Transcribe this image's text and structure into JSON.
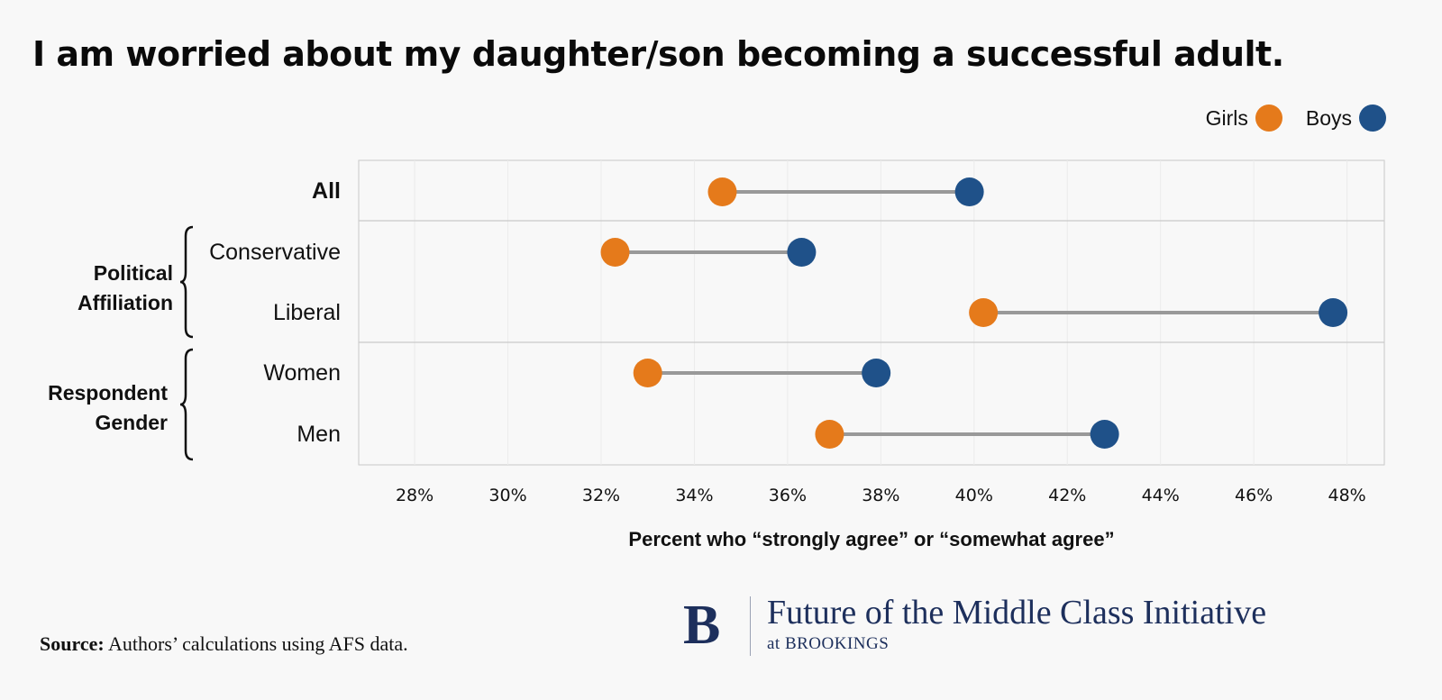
{
  "title": "I am worried about my daughter/son becoming a successful adult.",
  "legend": {
    "girls": "Girls",
    "boys": "Boys"
  },
  "colors": {
    "girls": "#e57a1b",
    "boys": "#1f5189",
    "connector": "#999999"
  },
  "row_labels": {
    "all": "All",
    "conservative": "Conservative",
    "liberal": "Liberal",
    "women": "Women",
    "men": "Men"
  },
  "group_labels": {
    "political_line1": "Political",
    "political_line2": "Affiliation",
    "gender_line1": "Respondent",
    "gender_line2": "Gender"
  },
  "source": {
    "label": "Source:",
    "text": " Authors’ calculations using AFS data."
  },
  "brand": {
    "logo": "B",
    "name": "Future of the Middle Class Initiative",
    "sub": "at BROOKINGS"
  },
  "chart_data": {
    "type": "dumbbell",
    "title": "I am worried about my daughter/son becoming a successful adult.",
    "xlabel": "Percent who “strongly agree” or “somewhat agree”",
    "ylabel": "",
    "categories": [
      "All",
      "Conservative",
      "Liberal",
      "Women",
      "Men"
    ],
    "series": [
      {
        "name": "Girls",
        "values": [
          34.6,
          32.3,
          40.2,
          33.0,
          36.9
        ]
      },
      {
        "name": "Boys",
        "values": [
          39.9,
          36.3,
          47.7,
          37.9,
          42.8
        ]
      }
    ],
    "xlim": [
      26.8,
      48.8
    ],
    "xticks": [
      28,
      30,
      32,
      34,
      36,
      38,
      40,
      42,
      44,
      46,
      48
    ],
    "xtick_labels": [
      "28%",
      "30%",
      "32%",
      "34%",
      "36%",
      "38%",
      "40%",
      "42%",
      "44%",
      "46%",
      "48%"
    ],
    "grid": true,
    "legend_position": "top-right"
  }
}
